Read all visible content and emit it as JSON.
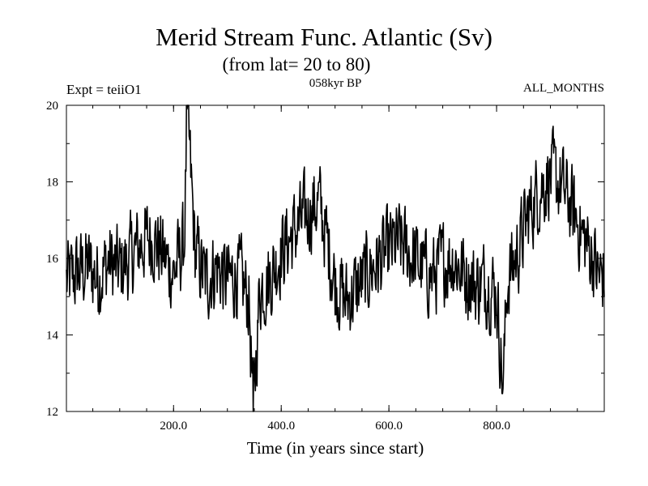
{
  "header": {
    "title": "Merid Stream Func. Atlantic (Sv)",
    "subtitle": "(from lat= 20 to 80)",
    "expt": "Expt = teiiO1",
    "period": "058kyr BP",
    "months": "ALL_MONTHS"
  },
  "chart_data": {
    "type": "line",
    "title": "Merid Stream Func. Atlantic (Sv)",
    "subtitle": "(from lat= 20 to 80)",
    "xlabel": "Time (in years since start)",
    "ylabel": "",
    "xlim": [
      1,
      1000
    ],
    "ylim": [
      12,
      20
    ],
    "x_ticks": [
      200,
      400,
      600,
      800
    ],
    "x_tick_labels": [
      "200.0",
      "400.0",
      "600.0",
      "800.0"
    ],
    "y_ticks": [
      12,
      14,
      16,
      18,
      20
    ],
    "y_tick_labels": [
      "12",
      "14",
      "16",
      "18",
      "20"
    ],
    "grid": false,
    "line_color": "#000000",
    "series": [
      {
        "x": [
          1,
          20,
          40,
          60,
          80,
          100,
          120,
          140,
          160,
          180,
          200,
          220,
          225,
          240,
          260,
          280,
          300,
          320,
          340,
          348,
          360,
          380,
          400,
          420,
          440,
          470,
          480,
          500,
          520,
          540,
          560,
          580,
          600,
          620,
          640,
          660,
          680,
          700,
          720,
          740,
          760,
          780,
          800,
          812,
          820,
          840,
          860,
          880,
          900,
          920,
          940,
          960,
          980,
          990,
          1000
        ],
        "values": [
          15.4,
          15.6,
          15.8,
          15.5,
          15.9,
          15.7,
          16.0,
          16.4,
          16.6,
          16.1,
          15.6,
          16.4,
          19.9,
          16.2,
          15.4,
          15.8,
          15.4,
          15.6,
          14.9,
          12.0,
          15.2,
          15.5,
          16.2,
          16.6,
          17.0,
          17.5,
          16.8,
          15.4,
          14.9,
          15.2,
          15.6,
          15.9,
          16.2,
          16.4,
          16.1,
          15.8,
          15.5,
          15.9,
          16.0,
          15.6,
          15.3,
          15.4,
          15.1,
          12.6,
          15.4,
          16.2,
          17.2,
          17.8,
          18.2,
          17.9,
          17.3,
          16.6,
          16.0,
          15.5,
          15.6
        ],
        "noise_amplitude": 0.7
      }
    ]
  }
}
